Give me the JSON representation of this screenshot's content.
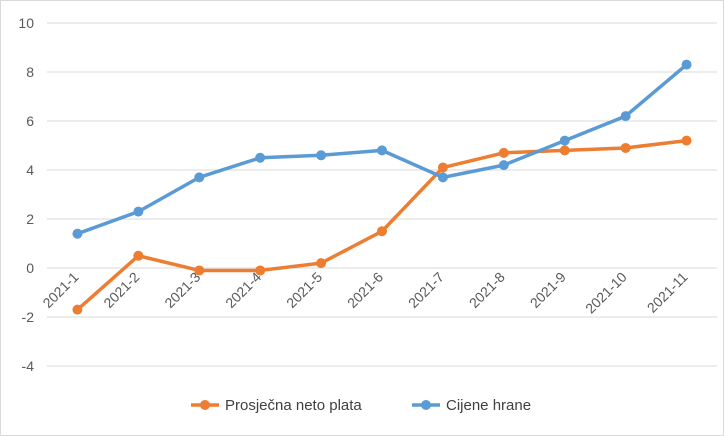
{
  "chart_data": {
    "type": "line",
    "categories": [
      "2021-1",
      "2021-2",
      "2021-3",
      "2021-4",
      "2021-5",
      "2021-6",
      "2021-7",
      "2021-8",
      "2021-9",
      "2021-10",
      "2021-11"
    ],
    "series": [
      {
        "name": "Prosječna neto plata",
        "color": "#ED7D31",
        "values": [
          -1.7,
          0.5,
          -0.1,
          -0.1,
          0.2,
          1.5,
          4.1,
          4.7,
          4.8,
          4.9,
          5.2
        ]
      },
      {
        "name": "Cijene hrane",
        "color": "#5B9BD5",
        "values": [
          1.4,
          2.3,
          3.7,
          4.5,
          4.6,
          4.8,
          3.7,
          4.2,
          5.2,
          6.2,
          8.3
        ]
      }
    ],
    "ylim": [
      -4,
      10
    ],
    "yticks": [
      "10",
      "8",
      "6",
      "4",
      "2",
      "0",
      "-2",
      "-4"
    ],
    "title": "",
    "xlabel": "",
    "ylabel": "",
    "grid": true,
    "legend": "bottom"
  }
}
